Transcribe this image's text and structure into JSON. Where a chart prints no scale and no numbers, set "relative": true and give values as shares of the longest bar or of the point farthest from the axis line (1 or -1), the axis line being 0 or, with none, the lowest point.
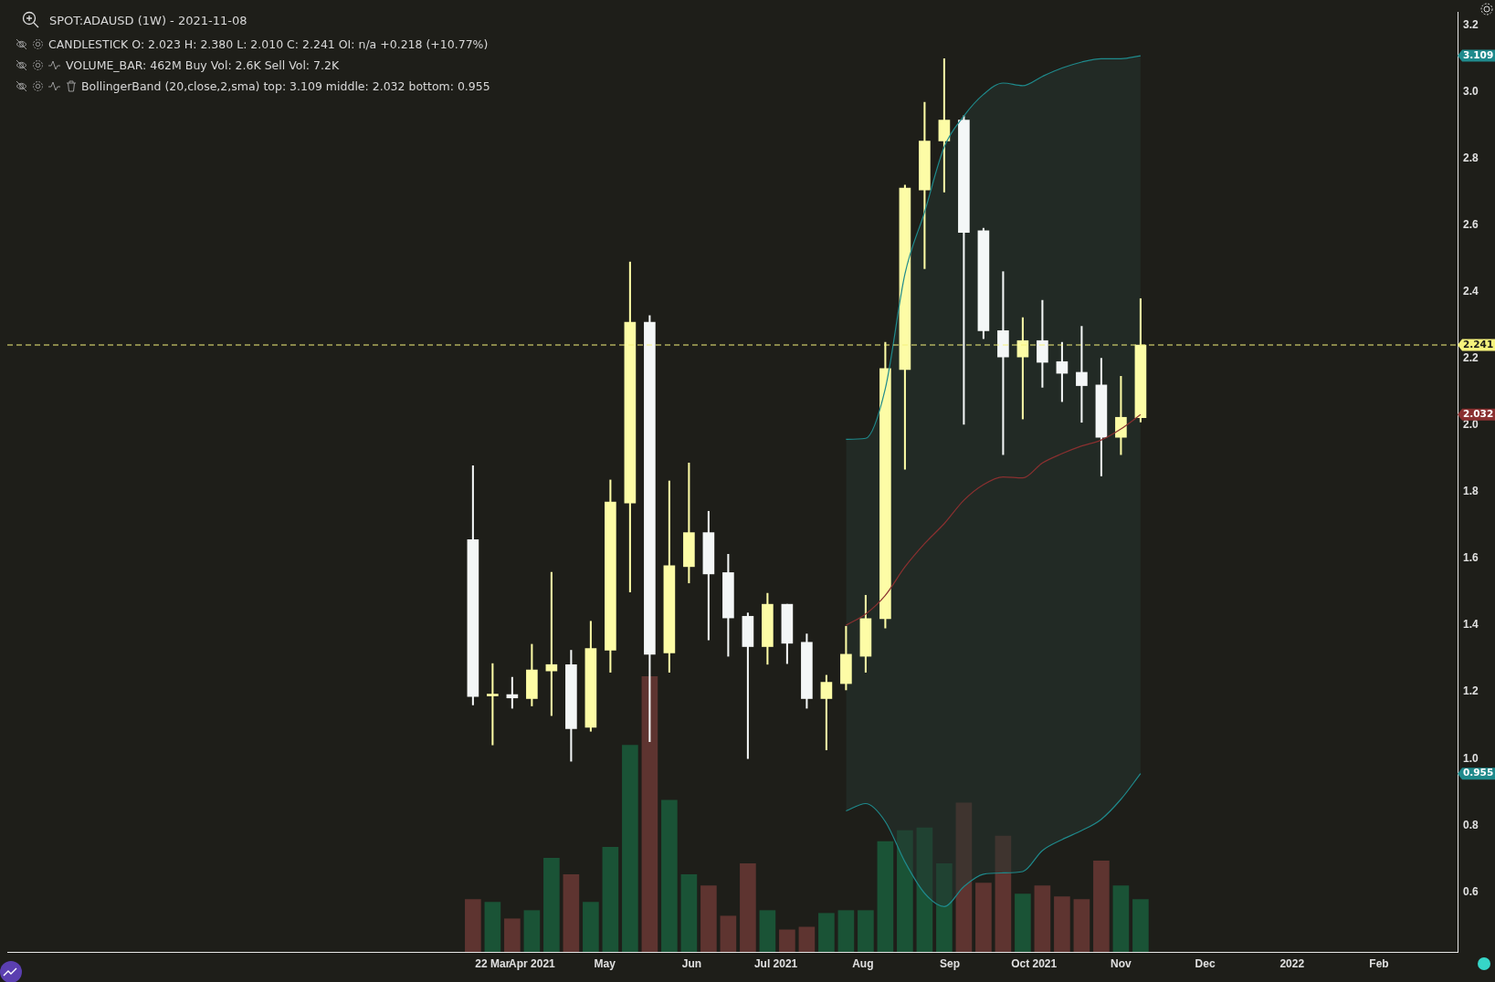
{
  "chart_data": [
    {
      "type": "candlestick",
      "title": "SPOT:ADAUSD (1W) - 2021-11-08",
      "annotations": [
        "CANDLESTICK O: 2.023 H: 2.380 L: 2.010 C: 2.241 OI: n/a +0.218  (+10.77%)",
        "VOLUME_BAR: 462M Buy Vol: 2.6K Sell Vol: 7.2K",
        "BollingerBand (20,close,2,sma) top: 3.109 middle: 2.032 bottom: 0.955",
        "3.109",
        "2.032",
        "0.955"
      ],
      "x": [
        "2021-03-15",
        "2021-03-22",
        "2021-03-29",
        "2021-04-05",
        "2021-04-12",
        "2021-04-19",
        "2021-04-26",
        "2021-05-03",
        "2021-05-10",
        "2021-05-17",
        "2021-05-24",
        "2021-05-31",
        "2021-06-07",
        "2021-06-14",
        "2021-06-21",
        "2021-06-28",
        "2021-07-05",
        "2021-07-12",
        "2021-07-19",
        "2021-07-26",
        "2021-08-02",
        "2021-08-09",
        "2021-08-16",
        "2021-08-23",
        "2021-08-30",
        "2021-09-06",
        "2021-09-13",
        "2021-09-20",
        "2021-09-27",
        "2021-10-04",
        "2021-10-11",
        "2021-10-18",
        "2021-10-25",
        "2021-11-01",
        "2021-11-08"
      ],
      "ohlc": [
        [
          1.657,
          1.879,
          1.161,
          1.186
        ],
        [
          1.188,
          1.285,
          1.041,
          1.192
        ],
        [
          1.192,
          1.244,
          1.151,
          1.182
        ],
        [
          1.18,
          1.343,
          1.158,
          1.266
        ],
        [
          1.263,
          1.559,
          1.129,
          1.282
        ],
        [
          1.282,
          1.325,
          0.992,
          1.09
        ],
        [
          1.094,
          1.412,
          1.082,
          1.33
        ],
        [
          1.325,
          1.836,
          1.259,
          1.77
        ],
        [
          1.767,
          2.49,
          1.5,
          2.309
        ],
        [
          2.309,
          2.329,
          1.051,
          1.313
        ],
        [
          1.317,
          1.833,
          1.259,
          1.579
        ],
        [
          1.576,
          1.887,
          1.527,
          1.678
        ],
        [
          1.678,
          1.742,
          1.356,
          1.554
        ],
        [
          1.558,
          1.613,
          1.307,
          1.422
        ],
        [
          1.427,
          1.437,
          1.0,
          1.336
        ],
        [
          1.336,
          1.496,
          1.283,
          1.463
        ],
        [
          1.463,
          1.463,
          1.285,
          1.346
        ],
        [
          1.349,
          1.374,
          1.151,
          1.18
        ],
        [
          1.18,
          1.25,
          1.026,
          1.229
        ],
        [
          1.225,
          1.397,
          1.206,
          1.313
        ],
        [
          1.307,
          1.49,
          1.259,
          1.42
        ],
        [
          1.42,
          2.249,
          1.392,
          2.17
        ],
        [
          2.167,
          2.721,
          1.868,
          2.712
        ],
        [
          2.706,
          2.969,
          2.47,
          2.853
        ],
        [
          2.853,
          3.1,
          2.7,
          2.916
        ],
        [
          2.916,
          2.929,
          2.003,
          2.579
        ],
        [
          2.584,
          2.591,
          2.26,
          2.284
        ],
        [
          2.284,
          2.461,
          1.912,
          2.205
        ],
        [
          2.205,
          2.323,
          2.019,
          2.254
        ],
        [
          2.254,
          2.375,
          2.114,
          2.189
        ],
        [
          2.191,
          2.249,
          2.071,
          2.156
        ],
        [
          2.159,
          2.297,
          2.009,
          2.119
        ],
        [
          2.121,
          2.201,
          1.848,
          1.964
        ],
        [
          1.964,
          2.147,
          1.912,
          2.024
        ],
        [
          2.023,
          2.38,
          2.01,
          2.241
        ]
      ],
      "colors": [
        "#f4f7f7",
        "#fdfca6",
        "#f4f7f7",
        "#fdfca6",
        "#fdfca6",
        "#f4f7f7",
        "#fdfca6",
        "#fdfca6",
        "#fdfca6",
        "#f4f7f7",
        "#fdfca6",
        "#fdfca6",
        "#f4f7f7",
        "#f4f7f7",
        "#f4f7f7",
        "#fdfca6",
        "#f4f7f7",
        "#f4f7f7",
        "#fdfca6",
        "#fdfca6",
        "#fdfca6",
        "#fdfca6",
        "#fdfca6",
        "#fdfca6",
        "#fdfca6",
        "#f4f7f7",
        "#f4f7f7",
        "#f4f7f7",
        "#fdfca6",
        "#f4f7f7",
        "#f4f7f7",
        "#f4f7f7",
        "#f4f7f7",
        "#fdfca6",
        "#fdfca6"
      ],
      "series": [
        {
          "type": "line",
          "color": "#1f8a8c",
          "x": [
            "2021-07-26",
            "2021-08-02",
            "2021-08-09",
            "2021-08-16",
            "2021-08-23",
            "2021-08-30",
            "2021-09-06",
            "2021-09-13",
            "2021-09-20",
            "2021-09-27",
            "2021-10-04",
            "2021-10-11",
            "2021-10-18",
            "2021-10-25",
            "2021-11-01",
            "2021-11-08"
          ],
          "values": [
            1.958,
            1.961,
            2.11,
            2.454,
            2.64,
            2.835,
            2.928,
            2.993,
            3.027,
            3.019,
            3.047,
            3.072,
            3.09,
            3.1,
            3.1,
            3.109
          ]
        },
        {
          "type": "line",
          "color": "#8a3030",
          "x": [
            "2021-07-26",
            "2021-08-02",
            "2021-08-09",
            "2021-08-16",
            "2021-08-23",
            "2021-08-30",
            "2021-09-06",
            "2021-09-13",
            "2021-09-20",
            "2021-09-27",
            "2021-10-04",
            "2021-10-11",
            "2021-10-18",
            "2021-10-25",
            "2021-11-01",
            "2021-11-08"
          ],
          "values": [
            1.4,
            1.434,
            1.49,
            1.575,
            1.645,
            1.705,
            1.775,
            1.822,
            1.845,
            1.842,
            1.887,
            1.915,
            1.938,
            1.956,
            1.989,
            2.032
          ],
          "lower": [
            0.843,
            0.865,
            0.811,
            0.69,
            0.596,
            0.556,
            0.616,
            0.653,
            0.657,
            0.661,
            0.724,
            0.757,
            0.784,
            0.818,
            0.878,
            0.955
          ],
          "upper": [
            1.958,
            1.961,
            2.11,
            2.454,
            2.64,
            2.835,
            2.928,
            2.993,
            3.027,
            3.019,
            3.047,
            3.072,
            3.09,
            3.1,
            3.1,
            3.109
          ]
        },
        {
          "type": "line",
          "color": "#1f8a8c",
          "x": [
            "2021-07-26",
            "2021-08-02",
            "2021-08-09",
            "2021-08-16",
            "2021-08-23",
            "2021-08-30",
            "2021-09-06",
            "2021-09-13",
            "2021-09-20",
            "2021-09-27",
            "2021-10-04",
            "2021-10-11",
            "2021-10-18",
            "2021-10-25",
            "2021-11-01",
            "2021-11-08"
          ],
          "values": [
            0.843,
            0.865,
            0.811,
            0.69,
            0.596,
            0.556,
            0.616,
            0.653,
            0.657,
            0.661,
            0.724,
            0.757,
            0.784,
            0.818,
            0.878,
            0.955
          ]
        }
      ],
      "ref_lines": [
        {
          "axis": "y",
          "value": 2.241,
          "label": "2.241",
          "color": "#f5f27c",
          "line_style": "dashed"
        }
      ],
      "xlim": [
        "2020-09-30",
        "2022-03-01"
      ],
      "xticks": [
        {
          "value": "2021-03-22",
          "label": "22 Mar"
        },
        {
          "value": "2021-04-05",
          "label": "Apr 2021"
        },
        {
          "value": "2021-05-01",
          "label": "May"
        },
        {
          "value": "2021-06-01",
          "label": "Jun"
        },
        {
          "value": "2021-07-01",
          "label": "Jul 2021"
        },
        {
          "value": "2021-08-01",
          "label": "Aug"
        },
        {
          "value": "2021-09-01",
          "label": "Sep"
        },
        {
          "value": "2021-10-01",
          "label": "Oct 2021"
        },
        {
          "value": "2021-11-01",
          "label": "Nov"
        },
        {
          "value": "2021-12-01",
          "label": "Dec"
        },
        {
          "value": "2022-01-01",
          "label": "2022"
        },
        {
          "value": "2022-02-01",
          "label": "Feb"
        }
      ],
      "ylim": [
        0.42,
        3.24
      ],
      "yticks": [
        0.6,
        0.8,
        {
          "value": 1,
          "label": "1.0"
        },
        1.2,
        1.4,
        1.6,
        1.8,
        {
          "value": 2,
          "label": "2.0"
        },
        2.2,
        2.4,
        2.6,
        2.8,
        {
          "value": 3,
          "label": "3.0"
        },
        3.2
      ],
      "marker": "none",
      "legend": false
    },
    {
      "type": "bar",
      "relative": true,
      "x": [
        "2021-03-15",
        "2021-03-22",
        "2021-03-29",
        "2021-04-05",
        "2021-04-12",
        "2021-04-19",
        "2021-04-26",
        "2021-05-03",
        "2021-05-10",
        "2021-05-17",
        "2021-05-24",
        "2021-05-31",
        "2021-06-07",
        "2021-06-14",
        "2021-06-21",
        "2021-06-28",
        "2021-07-05",
        "2021-07-12",
        "2021-07-19",
        "2021-07-26",
        "2021-08-02",
        "2021-08-09",
        "2021-08-16",
        "2021-08-23",
        "2021-08-30",
        "2021-09-06",
        "2021-09-13",
        "2021-09-20",
        "2021-09-27",
        "2021-10-04",
        "2021-10-11",
        "2021-10-18",
        "2021-10-25",
        "2021-11-01",
        "2021-11-08"
      ],
      "values": [
        0.19,
        0.18,
        0.12,
        0.15,
        0.34,
        0.28,
        0.18,
        0.38,
        0.75,
        1,
        0.55,
        0.28,
        0.24,
        0.13,
        0.32,
        0.15,
        0.08,
        0.09,
        0.14,
        0.15,
        0.15,
        0.4,
        0.44,
        0.45,
        0.32,
        0.54,
        0.25,
        0.42,
        0.21,
        0.24,
        0.2,
        0.19,
        0.33,
        0.24,
        0.19
      ],
      "colors": [
        "#5e3430",
        "#1a5336",
        "#5e3430",
        "#1a5336",
        "#1a5336",
        "#5e3430",
        "#1a5336",
        "#1a5336",
        "#1a5336",
        "#5e3430",
        "#1a5336",
        "#1a5336",
        "#5e3430",
        "#5e3430",
        "#5e3430",
        "#1a5336",
        "#5e3430",
        "#5e3430",
        "#1a5336",
        "#1a5336",
        "#1a5336",
        "#1a5336",
        "#1a5336",
        "#1a5336",
        "#1a5336",
        "#5e3430",
        "#5e3430",
        "#5e3430",
        "#1a5336",
        "#5e3430",
        "#5e3430",
        "#5e3430",
        "#5e3430",
        "#1a5336",
        "#1a5336"
      ],
      "xlim": [
        "2020-09-30",
        "2022-03-01"
      ],
      "legend": false
    }
  ]
}
